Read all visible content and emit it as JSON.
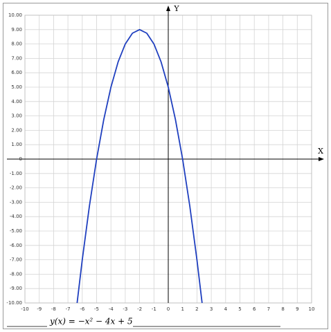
{
  "chart_data": {
    "type": "line",
    "formula": "y(x) = −x² − 4x + 5",
    "x_label": "X",
    "y_label": "Y",
    "x": [
      -6.36,
      -6,
      -5.5,
      -5,
      -4.5,
      -4,
      -3.5,
      -3,
      -2.5,
      -2,
      -1.5,
      -1,
      -0.5,
      0,
      0.5,
      1,
      1.5,
      2,
      2.36
    ],
    "values": [
      -10,
      -7,
      -3.25,
      0,
      2.75,
      5,
      6.75,
      8,
      8.75,
      9,
      8.75,
      8,
      6.75,
      5,
      2.75,
      0,
      -3.25,
      -7,
      -10
    ],
    "color": "#1f3fbf",
    "grid": true,
    "xlim": [
      -10,
      10
    ],
    "ylim": [
      -10,
      10
    ],
    "xticks": [
      -10,
      -9,
      -8,
      -7,
      -6,
      -5,
      -4,
      -3,
      -2,
      -1,
      0,
      1,
      2,
      3,
      4,
      5,
      6,
      7,
      8,
      9,
      10
    ],
    "yticks": [
      {
        "value": 10,
        "label": "10.00"
      },
      {
        "value": 9,
        "label": "9.00"
      },
      {
        "value": 8,
        "label": "8.00"
      },
      {
        "value": 7,
        "label": "7.00"
      },
      {
        "value": 6,
        "label": "6.00"
      },
      {
        "value": 5,
        "label": "5.00"
      },
      {
        "value": 4,
        "label": "4.00"
      },
      {
        "value": 3,
        "label": "3.00"
      },
      {
        "value": 2,
        "label": "2.00"
      },
      {
        "value": 1,
        "label": "1.00"
      },
      0,
      {
        "value": -1,
        "label": "-1.00"
      },
      {
        "value": -2,
        "label": "-2.00"
      },
      {
        "value": -3,
        "label": "-3.00"
      },
      {
        "value": -4,
        "label": "-4.00"
      },
      {
        "value": -5,
        "label": "-5.00"
      },
      {
        "value": -6,
        "label": "-6.00"
      },
      {
        "value": -7,
        "label": "-7.00"
      },
      {
        "value": -8,
        "label": "-8.00"
      },
      {
        "value": -9,
        "label": "-9.00"
      },
      {
        "value": -10,
        "label": "-10.00"
      }
    ]
  }
}
